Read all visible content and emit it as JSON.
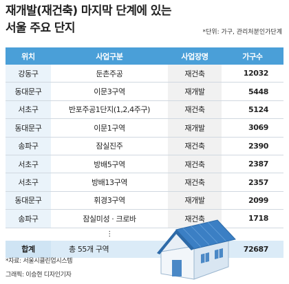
{
  "title": {
    "line1": "재개발(재건축) 마지막 단계에 있는",
    "line2": "서울 주요 단지"
  },
  "unit_note": "*단위: 가구, 관리처분인가단계",
  "chart_data": {
    "type": "table",
    "columns": [
      "위치",
      "사업구분",
      "사업장명",
      "가구수"
    ],
    "rows": [
      [
        "강동구",
        "둔촌주공",
        "재건축",
        12032
      ],
      [
        "동대문구",
        "이문3구역",
        "재개발",
        5448
      ],
      [
        "서초구",
        "반포주공1단지(1,2,4주구)",
        "재건축",
        5124
      ],
      [
        "동대문구",
        "이문1구역",
        "재개발",
        3069
      ],
      [
        "송파구",
        "잠실진주",
        "재건축",
        2390
      ],
      [
        "서초구",
        "방배5구역",
        "재건축",
        2387
      ],
      [
        "서초구",
        "방배13구역",
        "재건축",
        2357
      ],
      [
        "동대문구",
        "휘경3구역",
        "재개발",
        2099
      ],
      [
        "송파구",
        "잠실미성 · 크로바",
        "재건축",
        1718
      ]
    ],
    "ellipsis": "⋮",
    "total": {
      "label": "합계",
      "desc": "총 55개 구역",
      "value": 72687
    }
  },
  "footer": {
    "source": "*자료: 서울시클린업시스템",
    "credit": "그래픽: 이승현 디자인기자"
  },
  "colors": {
    "header_bg": "#4a9fd8",
    "col1_bg": "#eaf3fa",
    "col3_bg": "#f1f1f1",
    "total_bg": "#dbebf7",
    "house_roof": "#3b7fc4",
    "house_wall": "#f2f6fa"
  },
  "icons": {
    "decoration": "house-icon"
  }
}
